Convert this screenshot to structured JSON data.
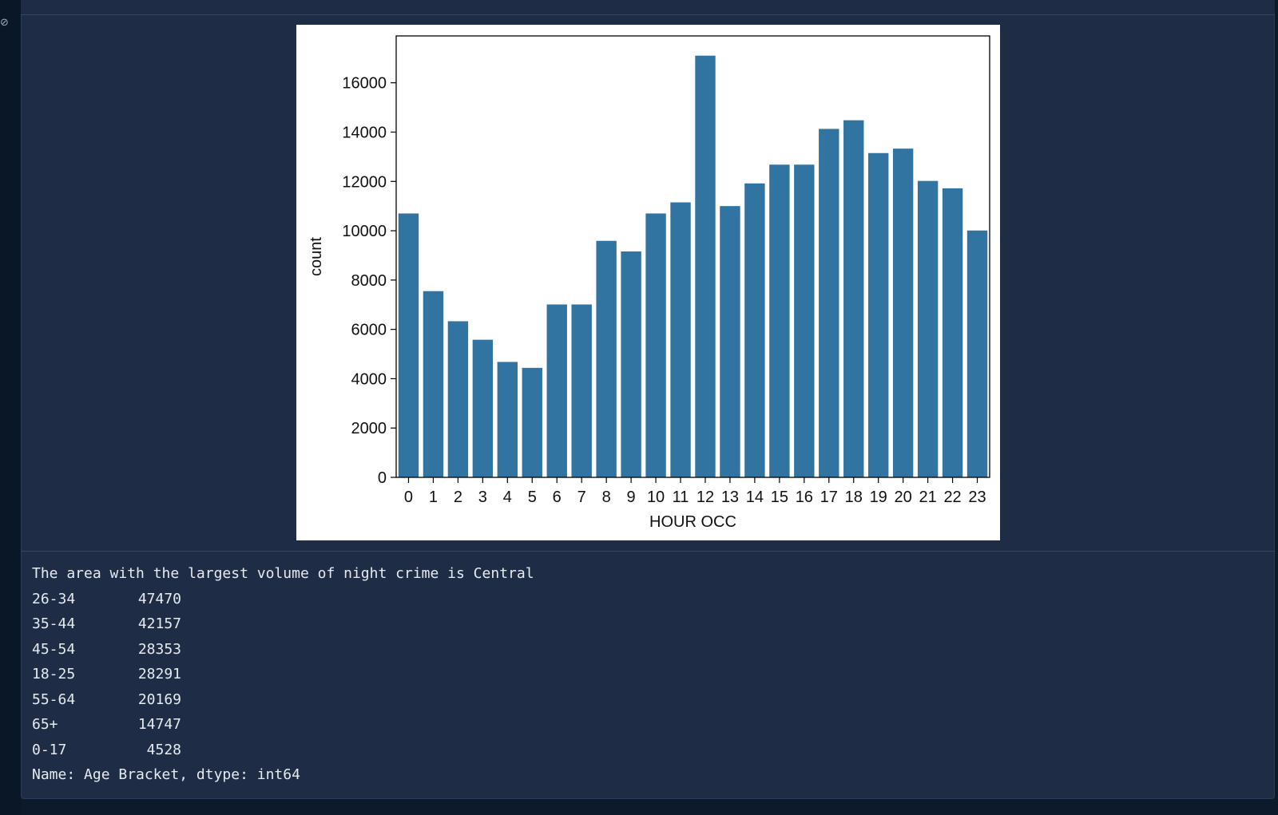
{
  "gutter": {
    "icon": "unlinked-output-icon"
  },
  "chart_data": {
    "type": "bar",
    "categories": [
      "0",
      "1",
      "2",
      "3",
      "4",
      "5",
      "6",
      "7",
      "8",
      "9",
      "10",
      "11",
      "12",
      "13",
      "14",
      "15",
      "16",
      "17",
      "18",
      "19",
      "20",
      "21",
      "22",
      "23"
    ],
    "values": [
      10700,
      7550,
      6330,
      5580,
      4680,
      4440,
      7010,
      7010,
      9590,
      9160,
      10700,
      11150,
      17100,
      11000,
      11920,
      12680,
      12680,
      14130,
      14480,
      13150,
      13330,
      12020,
      11720,
      10010
    ],
    "xlabel": "HOUR OCC",
    "ylabel": "count",
    "ylim": [
      0,
      17900
    ],
    "yticks": [
      0,
      2000,
      4000,
      6000,
      8000,
      10000,
      12000,
      14000,
      16000
    ],
    "grid": false,
    "bar_color": "#3274a1"
  },
  "output": {
    "message": "The area with the largest volume of night crime is Central",
    "series_rows": [
      {
        "label": "26-34",
        "value": "47470"
      },
      {
        "label": "35-44",
        "value": "42157"
      },
      {
        "label": "45-54",
        "value": "28353"
      },
      {
        "label": "18-25",
        "value": "28291"
      },
      {
        "label": "55-64",
        "value": "20169"
      },
      {
        "label": "65+",
        "value": "14747"
      },
      {
        "label": "0-17",
        "value": "4528"
      }
    ],
    "footer": "Name: Age Bracket, dtype: int64"
  }
}
